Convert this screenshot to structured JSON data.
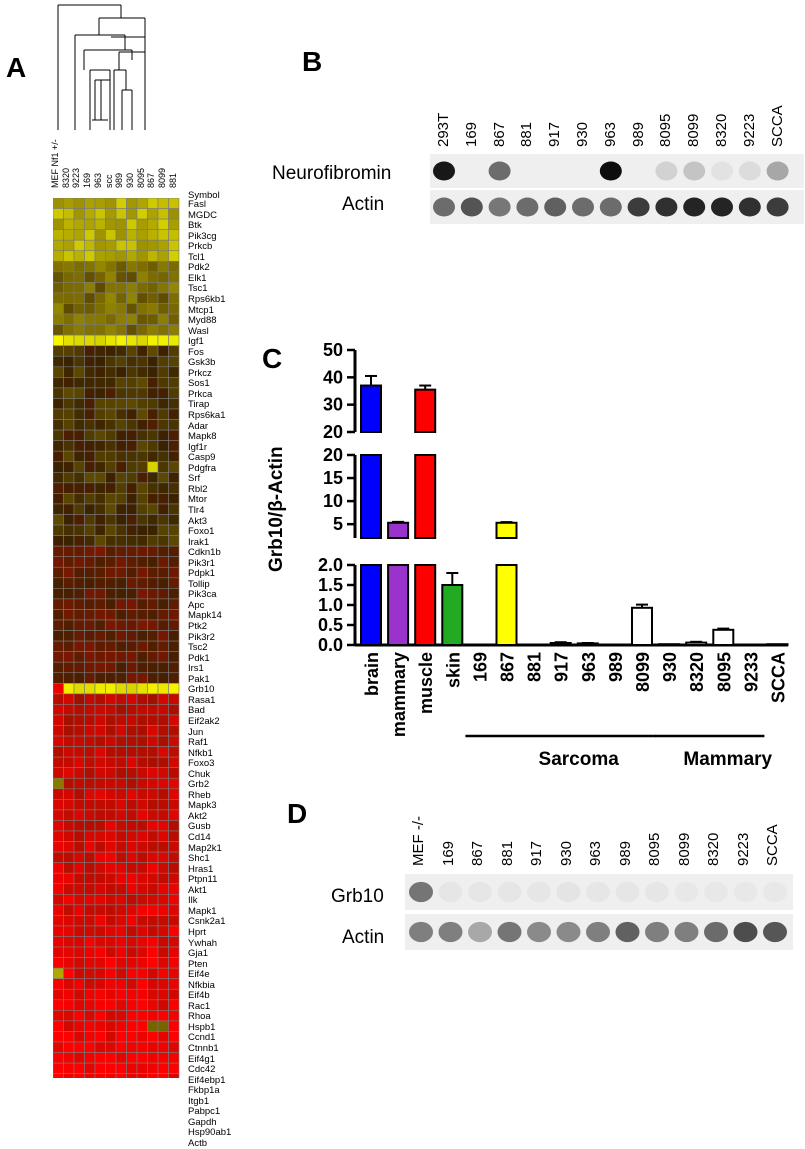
{
  "panels": {
    "a": "A",
    "b": "B",
    "c": "C",
    "d": "D"
  },
  "heatmap": {
    "column_labels": [
      "MEF Nf1 +/-",
      "8320",
      "9223",
      "169",
      "963",
      "scc",
      "989",
      "930",
      "8095",
      "867",
      "8099",
      "881"
    ],
    "symbol_header": "Symbol",
    "genes": [
      "Fasl",
      "MGDC",
      "Btk",
      "Pik3cg",
      "Prkcb",
      "Tcl1",
      "Pdk2",
      "Elk1",
      "Tsc1",
      "Rps6kb1",
      "Mtcp1",
      "Myd88",
      "Wasl",
      "Igf1",
      "Fos",
      "Gsk3b",
      "Prkcz",
      "Sos1",
      "Prkca",
      "Tirap",
      "Rps6ka1",
      "Adar",
      "Mapk8",
      "Igf1r",
      "Casp9",
      "Pdgfra",
      "Srf",
      "Rbl2",
      "Mtor",
      "Tlr4",
      "Akt3",
      "Foxo1",
      "Irak1",
      "Cdkn1b",
      "Pik3r1",
      "Pdpk1",
      "Tollip",
      "Pik3ca",
      "Apc",
      "Mapk14",
      "Ptk2",
      "Pik3r2",
      "Tsc2",
      "Pdk1",
      "Irs1",
      "Pak1",
      "Grb10",
      "Rasa1",
      "Bad",
      "Eif2ak2",
      "Jun",
      "Raf1",
      "Nfkb1",
      "Foxo3",
      "Chuk",
      "Grb2",
      "Rheb",
      "Mapk3",
      "Akt2",
      "Gusb",
      "Cd14",
      "Map2k1",
      "Shc1",
      "Hras1",
      "Ptpn11",
      "Akt1",
      "Ilk",
      "Mapk1",
      "Csnk2a1",
      "Hprt",
      "Ywhah",
      "Gja1",
      "Pten",
      "Eif4e",
      "Nfkbia",
      "Eif4b",
      "Rac1",
      "Rhoa",
      "Hspb1",
      "Ccnd1",
      "Ctnnb1",
      "Eif4g1",
      "Cdc42",
      "Eif4ebp1",
      "Fkbp1a",
      "Itgb1",
      "Pabpc1",
      "Gapdh",
      "Hsp90ab1",
      "Actb"
    ]
  },
  "blot_b": {
    "lanes": [
      "293T",
      "169",
      "867",
      "881",
      "917",
      "930",
      "963",
      "989",
      "8095",
      "8099",
      "8320",
      "9223",
      "SCCA"
    ],
    "rows": [
      "Neurofibromin",
      "Actin"
    ],
    "neurofibromin_intensity": [
      0.9,
      0,
      0.55,
      0,
      0,
      0,
      0.95,
      0,
      0.12,
      0.18,
      0.05,
      0.08,
      0.3
    ],
    "actin_intensity": [
      0.55,
      0.65,
      0.5,
      0.55,
      0.6,
      0.55,
      0.55,
      0.75,
      0.8,
      0.85,
      0.85,
      0.8,
      0.75
    ]
  },
  "chart_data": {
    "type": "bar",
    "ylabel": "Grb10/β-Actin",
    "categories": [
      "brain",
      "mammary",
      "muscle",
      "skin",
      "169",
      "867",
      "881",
      "917",
      "963",
      "989",
      "8099",
      "930",
      "8320",
      "8095",
      "9233",
      "SCCA"
    ],
    "values": [
      37,
      5.3,
      35.5,
      1.5,
      0.0,
      5.3,
      0.01,
      0.05,
      0.04,
      0.01,
      0.93,
      0.02,
      0.06,
      0.38,
      0.01,
      0.02
    ],
    "errors": [
      3.5,
      0.2,
      1.5,
      0.3,
      0,
      0.15,
      0,
      0.02,
      0.01,
      0,
      0.08,
      0,
      0.02,
      0.03,
      0,
      0
    ],
    "colors": [
      "#0000ff",
      "#9933cc",
      "#ff0000",
      "#22aa22",
      "#ffffff",
      "#ffff00",
      "#ffffff",
      "#ffffff",
      "#ffffff",
      "#ffffff",
      "#ffffff",
      "#ffffff",
      "#ffffff",
      "#ffffff",
      "#ffffff",
      "#ffffff"
    ],
    "segments": [
      {
        "range": [
          0,
          2
        ],
        "ticks": [
          "0.0",
          "0.5",
          "1.0",
          "1.5",
          "2.0"
        ],
        "tick_values": [
          0,
          0.5,
          1,
          1.5,
          2
        ]
      },
      {
        "range": [
          2,
          20
        ],
        "ticks": [
          "5",
          "10",
          "15",
          "20"
        ],
        "tick_values": [
          5,
          10,
          15,
          20
        ]
      },
      {
        "range": [
          20,
          50
        ],
        "ticks": [
          "20",
          "30",
          "40",
          "50"
        ],
        "tick_values": [
          20,
          30,
          40,
          50
        ]
      }
    ],
    "groups": [
      {
        "label": "Sarcoma",
        "from": "169",
        "to": "8099"
      },
      {
        "label": "Mammary",
        "from": "930",
        "to": "9233"
      }
    ]
  },
  "blot_d": {
    "lanes": [
      "MEF -/-",
      "169",
      "867",
      "881",
      "917",
      "930",
      "963",
      "989",
      "8095",
      "8099",
      "8320",
      "9223",
      "SCCA"
    ],
    "rows": [
      "Grb10",
      "Actin"
    ],
    "grb10_intensity": [
      0.6,
      0.04,
      0.04,
      0.04,
      0.04,
      0.05,
      0.04,
      0.04,
      0.04,
      0.03,
      0.03,
      0.03,
      0.03
    ],
    "actin_intensity": [
      0.55,
      0.55,
      0.35,
      0.6,
      0.5,
      0.5,
      0.55,
      0.7,
      0.55,
      0.55,
      0.65,
      0.8,
      0.75
    ]
  },
  "colors": {
    "heat_high": "#ffff00",
    "heat_mid": "#3a2200",
    "heat_low": "#ff0000",
    "grid": "#808080"
  }
}
